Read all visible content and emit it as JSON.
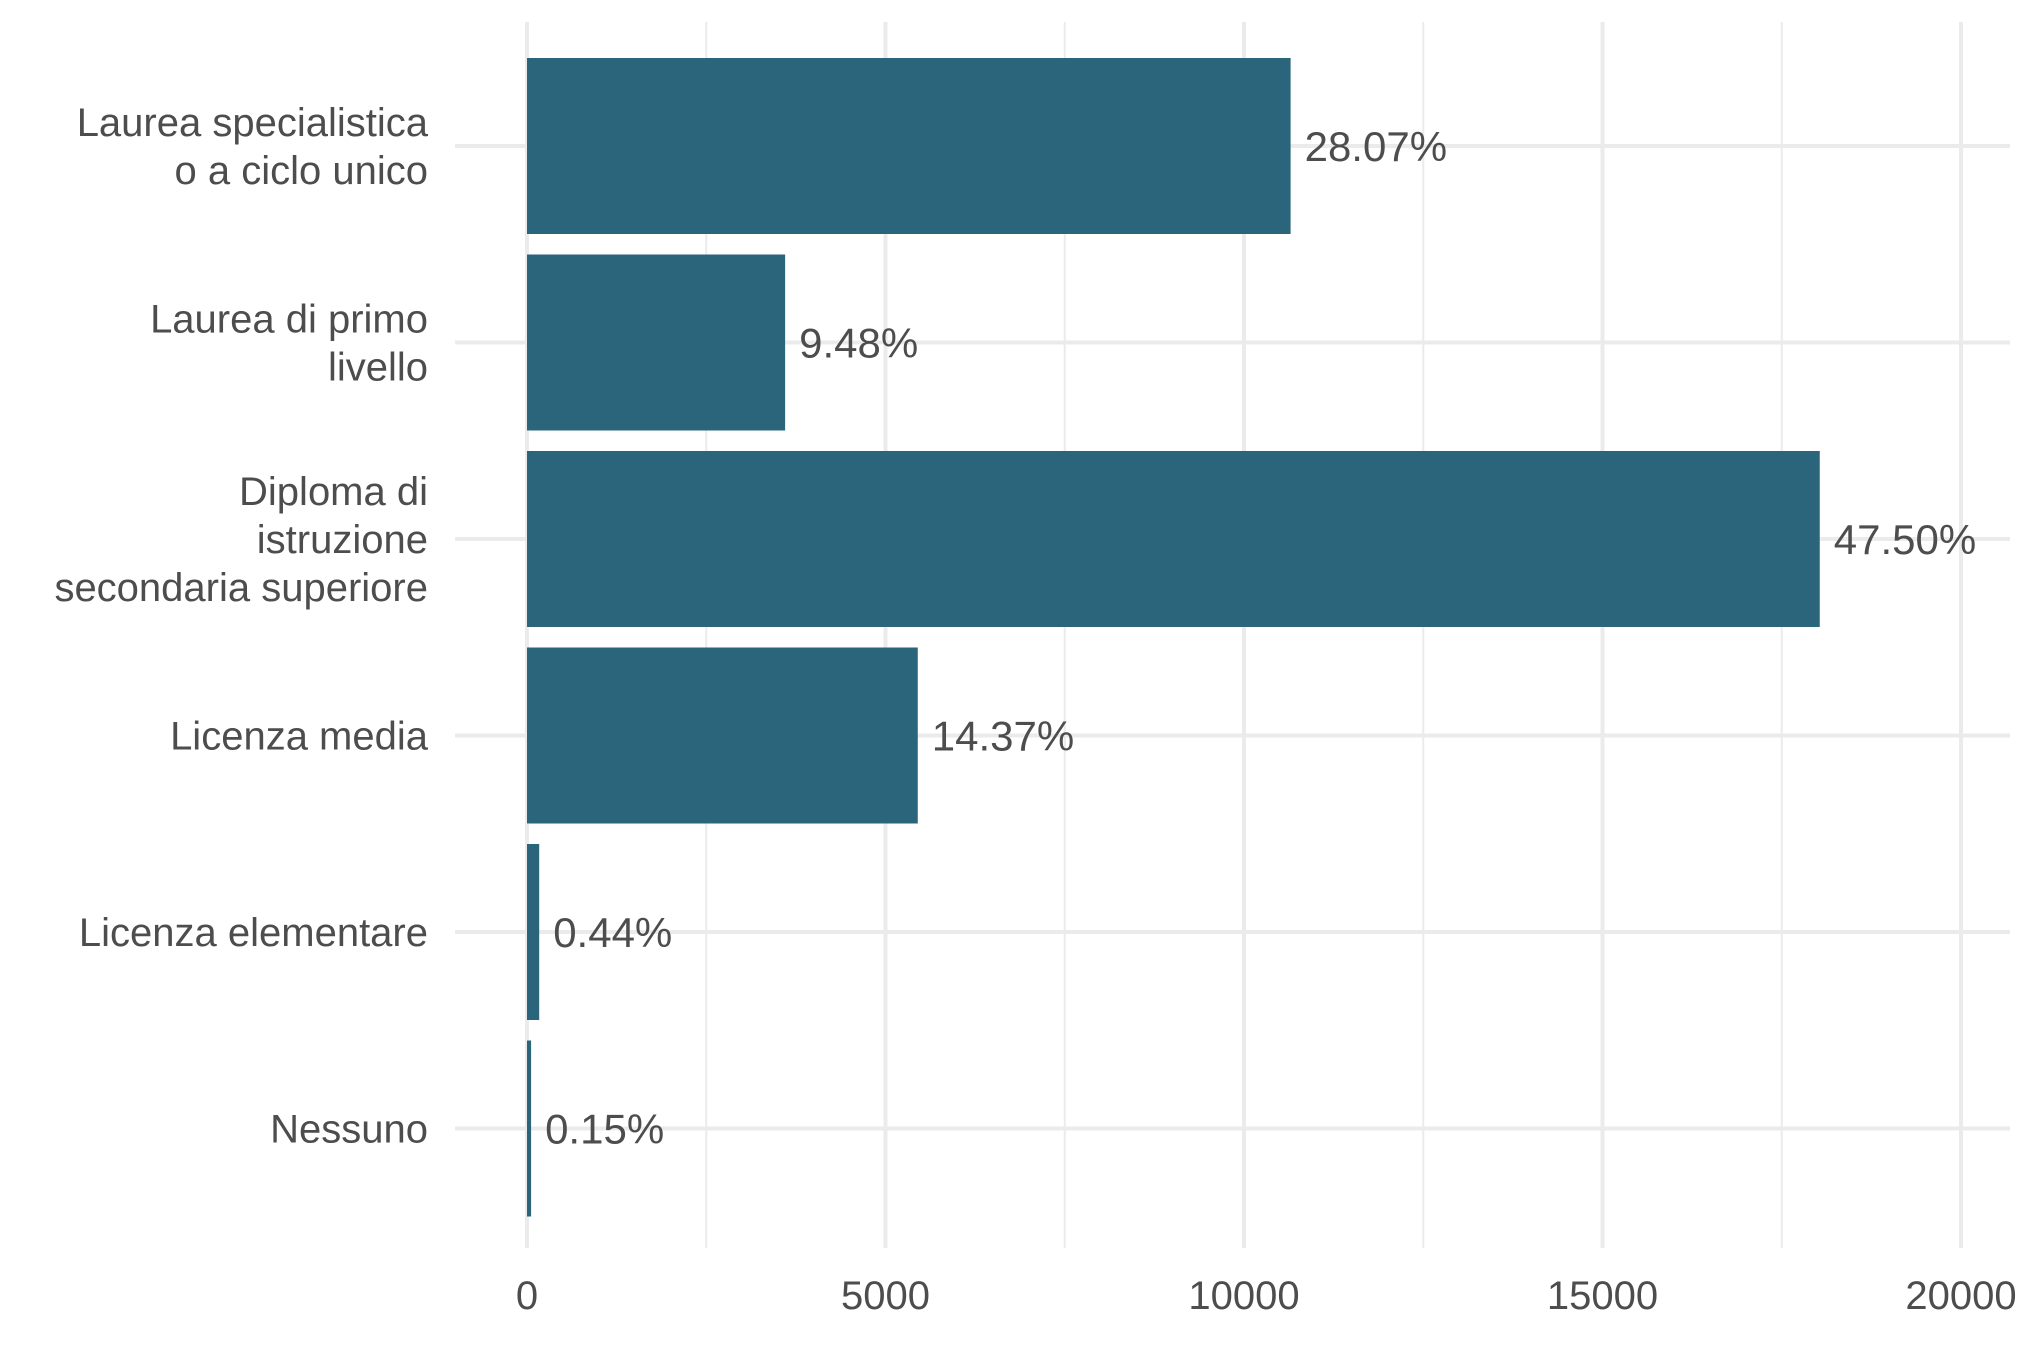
{
  "chart_data": {
    "type": "bar",
    "orientation": "horizontal",
    "categories": [
      [
        "Laurea specialistica",
        "o a ciclo unico"
      ],
      [
        "Laurea di primo",
        "livello"
      ],
      [
        "Diploma di",
        "istruzione",
        "secondaria superiore"
      ],
      [
        "Licenza media"
      ],
      [
        "Licenza elementare"
      ],
      [
        "Nessuno"
      ]
    ],
    "values": [
      10650,
      3600,
      18030,
      5450,
      170,
      57
    ],
    "labels": [
      "28.07%",
      "9.48%",
      "47.50%",
      "14.37%",
      "0.44%",
      "0.15%"
    ],
    "xticks": [
      0,
      5000,
      10000,
      15000,
      20000
    ],
    "xtick_labels": [
      "0",
      "5000",
      "10000",
      "15000",
      "20000"
    ],
    "xlim": [
      0,
      20800
    ],
    "grid": true,
    "colors": {
      "bar": "#2a657b",
      "grid": "#ebebeb",
      "text": "#4d4d4d"
    }
  }
}
